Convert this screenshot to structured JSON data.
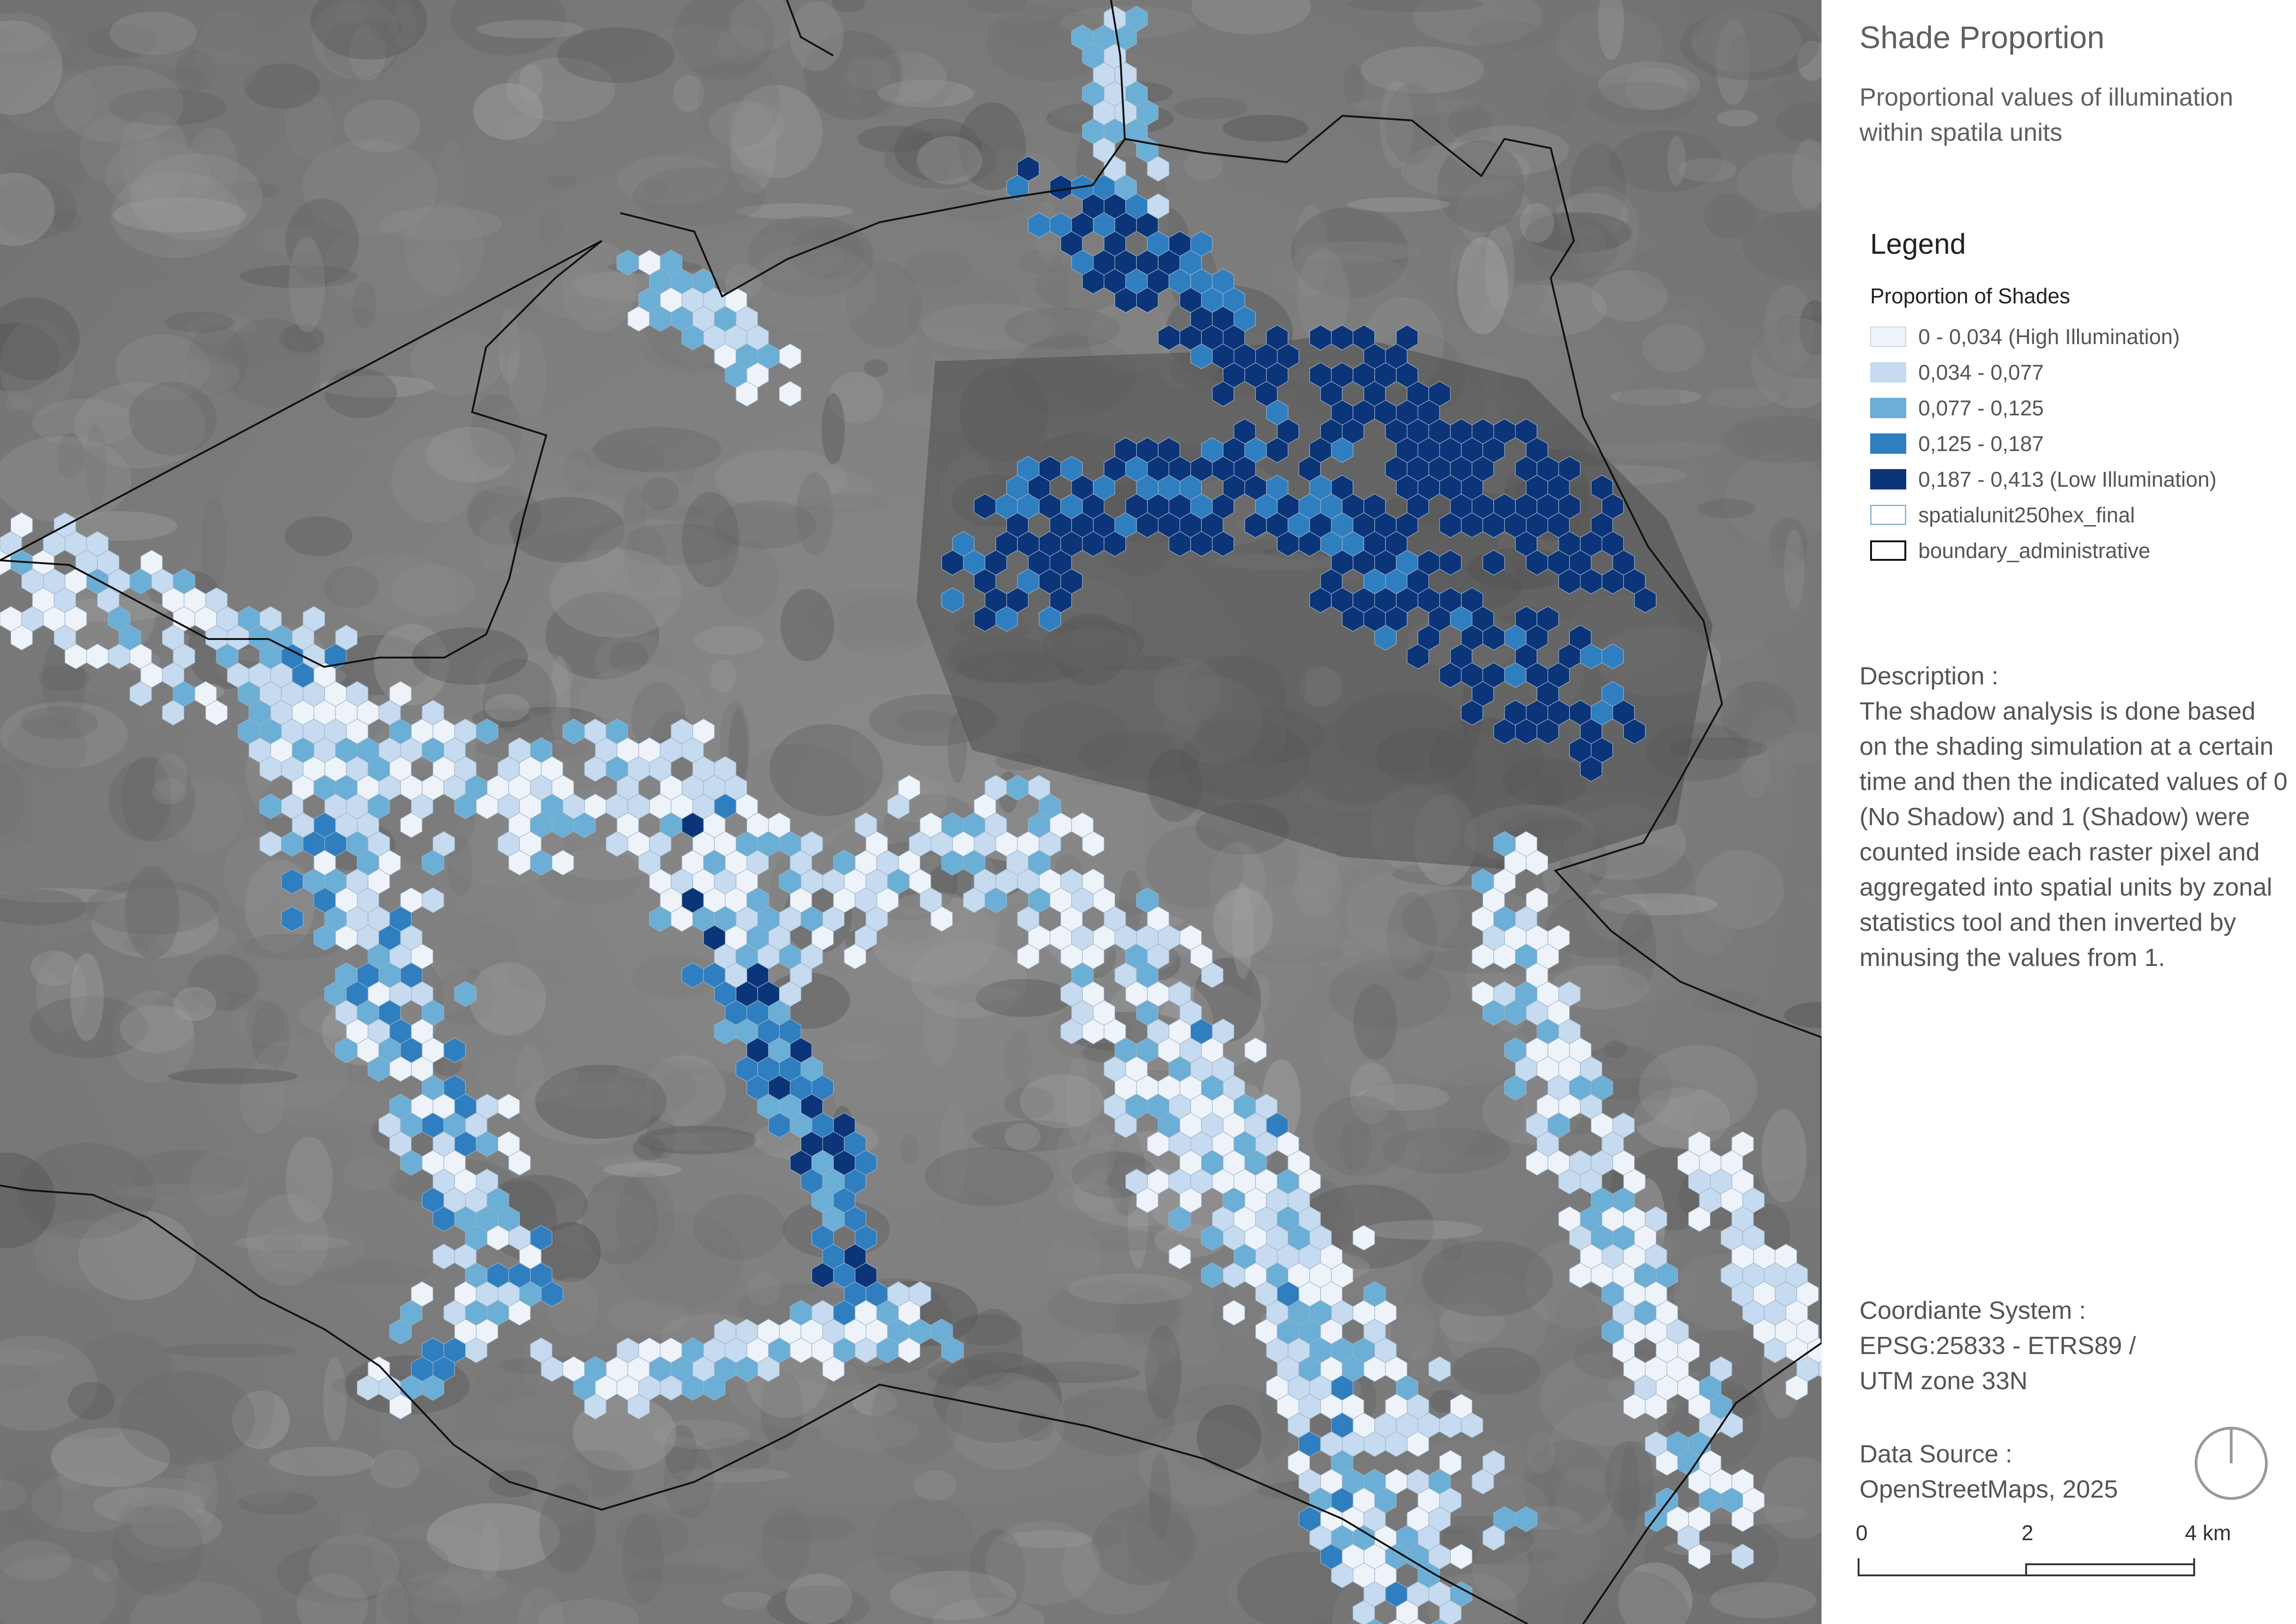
{
  "title": "Shade Proportion",
  "subtitle": "Proportional values of illumination within spatila units",
  "legend": {
    "heading": "Legend",
    "group_title": "Proportion of Shades",
    "items": [
      {
        "label": "0 - 0,034 (High Illumination)",
        "color": "#eef3fa",
        "border": "#c9d6e8"
      },
      {
        "label": "0,034 - 0,077",
        "color": "#c6dbef",
        "border": "#c6dbef"
      },
      {
        "label": "0,077 - 0,125",
        "color": "#6baed6",
        "border": "#6baed6"
      },
      {
        "label": "0,125 - 0,187",
        "color": "#2f7ec0",
        "border": "#2f7ec0"
      },
      {
        "label": "0,187 - 0,413 (Low Illumination)",
        "color": "#0b3578",
        "border": "#0b3578"
      },
      {
        "label": "spatialunit250hex_final",
        "color": "#ffffff",
        "border": "#8fb7cf"
      },
      {
        "label": "boundary_administrative",
        "color": "#ffffff",
        "border": "#111111"
      }
    ]
  },
  "description": [
    "Description :",
    "The shadow analysis is done based on the shading simulation at a certain time and then the indicated values of 0 (No Shadow) and 1 (Shadow) were counted inside each raster pixel and aggregated into spatial units by zonal statistics tool and then inverted by minusing the values from 1."
  ],
  "coordinate_system": [
    "Coordiante System :",
    "EPSG:25833 - ETRS89 /",
    "UTM zone 33N"
  ],
  "data_source": [
    "Data Source :",
    "OpenStreetMaps, 2025"
  ],
  "scale": {
    "labels": [
      "0",
      "2",
      "4 km"
    ]
  },
  "map": {
    "description_note": "",
    "class_colors": [
      "#eef3fa",
      "#c6dbef",
      "#6baed6",
      "#2f7ec0",
      "#0b3578"
    ]
  }
}
